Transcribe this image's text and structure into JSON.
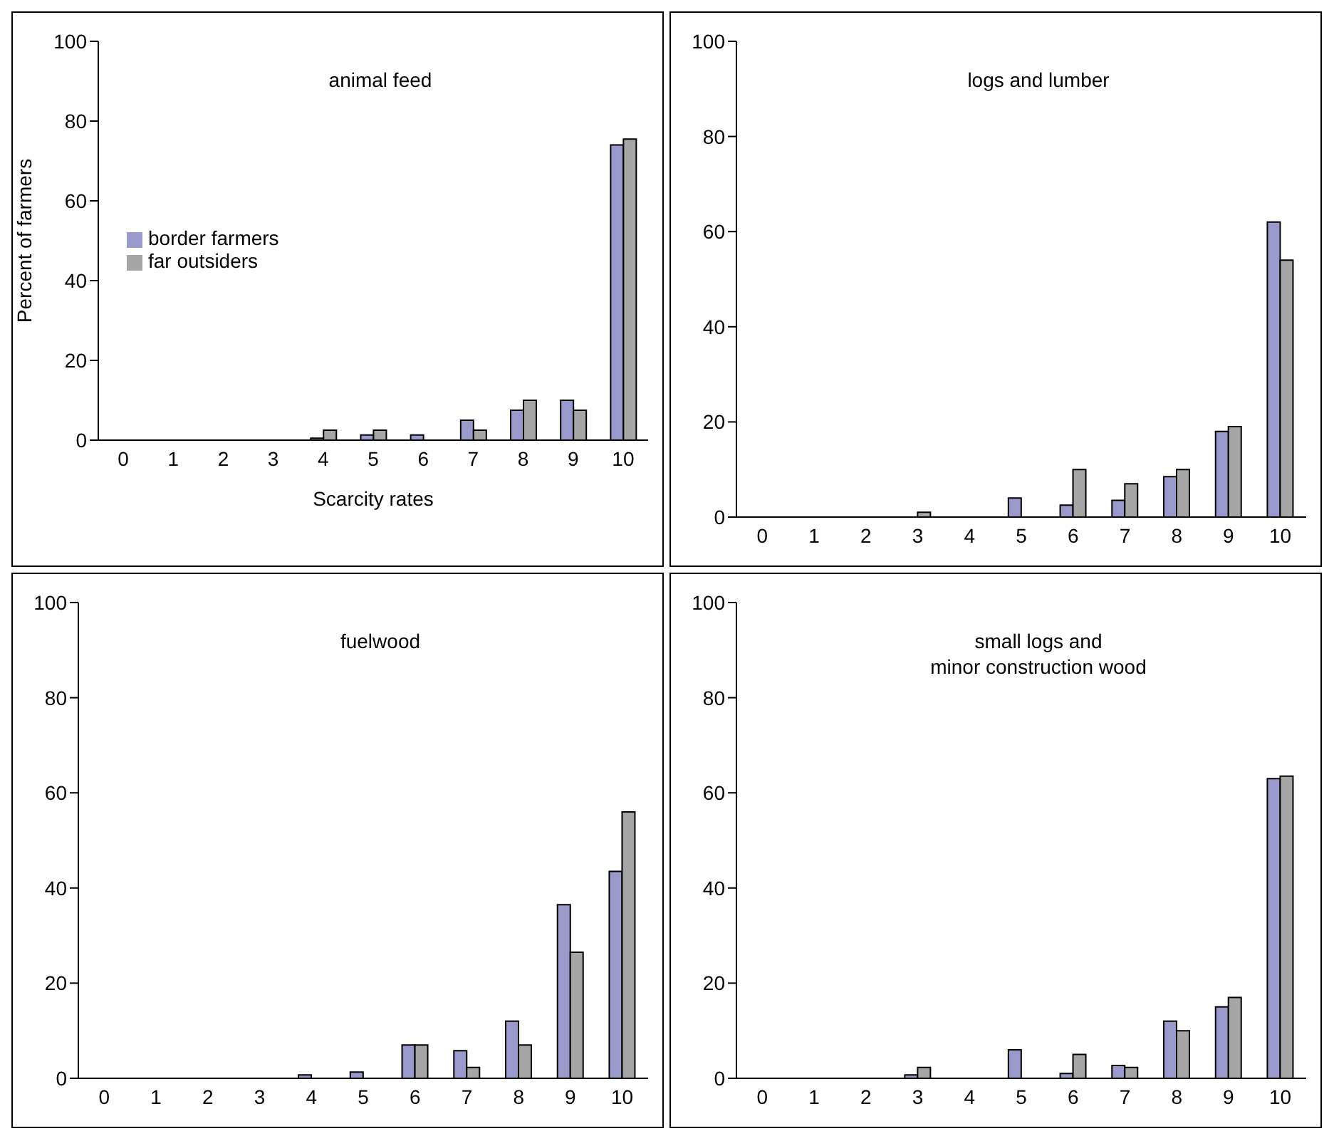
{
  "chart_data": [
    {
      "type": "bar",
      "title": "animal feed",
      "xlabel": "Scarcity rates",
      "ylabel": "Percent of farmers",
      "categories": [
        "0",
        "1",
        "2",
        "3",
        "4",
        "5",
        "6",
        "7",
        "8",
        "9",
        "10"
      ],
      "ylim": [
        0,
        100
      ],
      "yticks": [
        0,
        20,
        40,
        60,
        80,
        100
      ],
      "legend": "left",
      "series": [
        {
          "name": "border farmers",
          "color": "#9999cc",
          "values": [
            0,
            0,
            0,
            0,
            0.5,
            1.3,
            1.3,
            5,
            7.5,
            10,
            74
          ]
        },
        {
          "name": "far outsiders",
          "color": "#a6a6a6",
          "values": [
            0,
            0,
            0,
            0,
            2.5,
            2.5,
            0,
            2.5,
            10,
            7.5,
            75.5
          ]
        }
      ]
    },
    {
      "type": "bar",
      "title": "logs and lumber",
      "categories": [
        "0",
        "1",
        "2",
        "3",
        "4",
        "5",
        "6",
        "7",
        "8",
        "9",
        "10"
      ],
      "ylim": [
        0,
        100
      ],
      "yticks": [
        0,
        20,
        40,
        60,
        80,
        100
      ],
      "legend": false,
      "series": [
        {
          "color": "#9999cc",
          "values": [
            0,
            0,
            0,
            0,
            0,
            4,
            2.5,
            3.5,
            8.5,
            18,
            62
          ]
        },
        {
          "color": "#a6a6a6",
          "values": [
            0,
            0,
            0,
            1,
            0,
            0,
            10,
            7,
            10,
            19,
            54
          ]
        }
      ]
    },
    {
      "type": "bar",
      "title": "fuelwood",
      "categories": [
        "0",
        "1",
        "2",
        "3",
        "4",
        "5",
        "6",
        "7",
        "8",
        "9",
        "10"
      ],
      "ylim": [
        0,
        100
      ],
      "yticks": [
        0,
        20,
        40,
        60,
        80,
        100
      ],
      "legend": false,
      "series": [
        {
          "color": "#9999cc",
          "values": [
            0,
            0,
            0,
            0,
            0.7,
            1.3,
            7,
            5.8,
            12,
            36.5,
            43.5
          ]
        },
        {
          "color": "#a6a6a6",
          "values": [
            0,
            0,
            0,
            0,
            0,
            0,
            7,
            2.3,
            7,
            26.5,
            56
          ]
        }
      ]
    },
    {
      "type": "bar",
      "title": "small logs and\nminor construction wood",
      "categories": [
        "0",
        "1",
        "2",
        "3",
        "4",
        "5",
        "6",
        "7",
        "8",
        "9",
        "10"
      ],
      "ylim": [
        0,
        100
      ],
      "yticks": [
        0,
        20,
        40,
        60,
        80,
        100
      ],
      "legend": false,
      "series": [
        {
          "color": "#9999cc",
          "values": [
            0,
            0,
            0,
            0.7,
            0,
            6,
            1,
            2.7,
            12,
            15,
            63
          ]
        },
        {
          "color": "#a6a6a6",
          "values": [
            0,
            0,
            0,
            2.3,
            0,
            0,
            5,
            2.3,
            10,
            17,
            63.5
          ]
        }
      ]
    }
  ]
}
